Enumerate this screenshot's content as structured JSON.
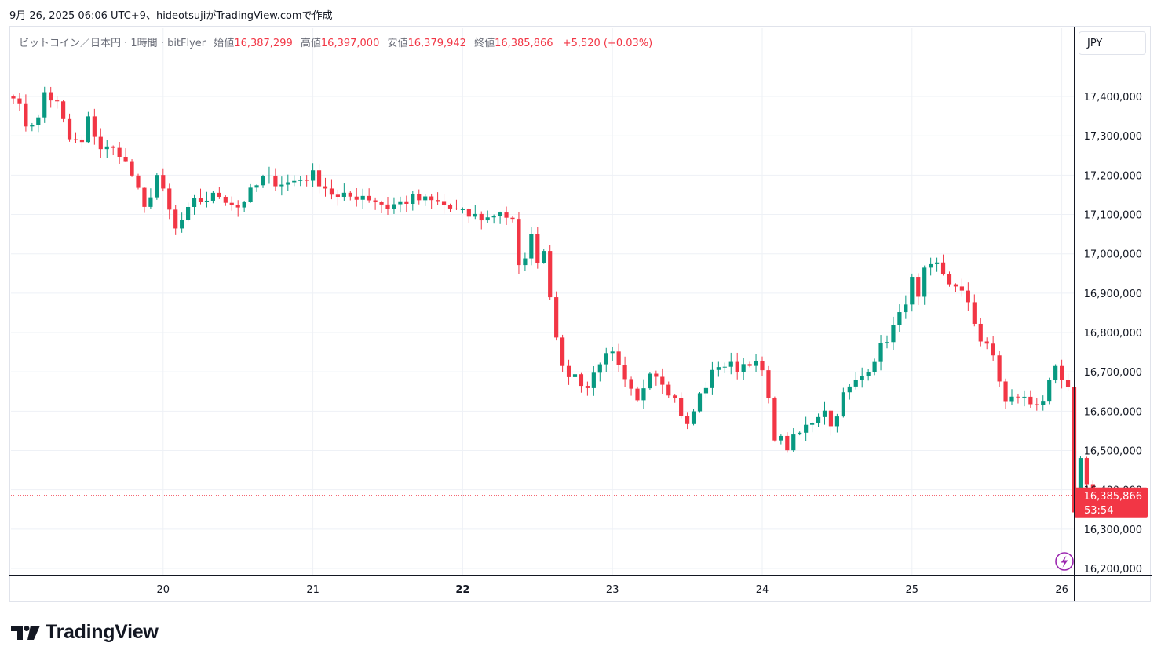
{
  "timestamp": "9月 26, 2025 06:06 UTC+9、hideotsujiがTradingView.comで作成",
  "legend": {
    "symbol": "ビットコイン／日本円 · 1時間 · bitFlyer",
    "open_label": "始値",
    "open_value": "16,387,299",
    "high_label": "高値",
    "high_value": "16,397,000",
    "low_label": "安値",
    "low_value": "16,379,942",
    "close_label": "終値",
    "close_value": "16,385,866",
    "change": "+5,520 (+0.03%)"
  },
  "currency": "JPY",
  "price_tag": {
    "price": "16,385,866",
    "countdown": "53:54"
  },
  "brand": "TradingView",
  "colors": {
    "up": "#089981",
    "down": "#f23645",
    "grid": "#eef1f6",
    "axis": "#131722",
    "alert": "#9c27b0"
  },
  "chart_data": {
    "type": "candlestick",
    "title": "ビットコイン／日本円 · 1時間 · bitFlyer",
    "currency": "JPY",
    "interval": "1時間",
    "ylim": [
      16200000,
      17430000
    ],
    "yticks": [
      16200000,
      16300000,
      16400000,
      16500000,
      16600000,
      16700000,
      16800000,
      16900000,
      17000000,
      17100000,
      17200000,
      17300000,
      17400000
    ],
    "ytick_labels": [
      "16,200,000",
      "16,300,000",
      "16,400,000",
      "16,500,000",
      "16,600,000",
      "16,700,000",
      "16,800,000",
      "16,900,000",
      "17,000,000",
      "17,100,000",
      "17,200,000",
      "17,300,000",
      "17,400,000"
    ],
    "xticks": [
      {
        "label": "20",
        "index": 24,
        "bold": false
      },
      {
        "label": "21",
        "index": 48,
        "bold": false
      },
      {
        "label": "22",
        "index": 72,
        "bold": true
      },
      {
        "label": "23",
        "index": 96,
        "bold": false
      },
      {
        "label": "24",
        "index": 120,
        "bold": false
      },
      {
        "label": "25",
        "index": 144,
        "bold": false
      },
      {
        "label": "26",
        "index": 168,
        "bold": false
      }
    ],
    "last_price": 16385866,
    "grid": true,
    "waypoints": [
      [
        0,
        17410000
      ],
      [
        2,
        17330000
      ],
      [
        4,
        17340000
      ],
      [
        5,
        17410000
      ],
      [
        7,
        17380000
      ],
      [
        9,
        17290000
      ],
      [
        11,
        17280000
      ],
      [
        12,
        17340000
      ],
      [
        14,
        17270000
      ],
      [
        17,
        17260000
      ],
      [
        19,
        17200000
      ],
      [
        21,
        17110000
      ],
      [
        23,
        17200000
      ],
      [
        26,
        17060000
      ],
      [
        29,
        17130000
      ],
      [
        33,
        17150000
      ],
      [
        36,
        17120000
      ],
      [
        40,
        17190000
      ],
      [
        44,
        17180000
      ],
      [
        48,
        17200000
      ],
      [
        52,
        17140000
      ],
      [
        56,
        17150000
      ],
      [
        60,
        17120000
      ],
      [
        64,
        17140000
      ],
      [
        68,
        17130000
      ],
      [
        72,
        17100000
      ],
      [
        76,
        17090000
      ],
      [
        78,
        17110000
      ],
      [
        80,
        17080000
      ],
      [
        81,
        16960000
      ],
      [
        83,
        17040000
      ],
      [
        84,
        16990000
      ],
      [
        85,
        17010000
      ],
      [
        86,
        16900000
      ],
      [
        88,
        16700000
      ],
      [
        90,
        16690000
      ],
      [
        92,
        16660000
      ],
      [
        94,
        16730000
      ],
      [
        96,
        16740000
      ],
      [
        98,
        16670000
      ],
      [
        100,
        16620000
      ],
      [
        102,
        16710000
      ],
      [
        104,
        16680000
      ],
      [
        106,
        16630000
      ],
      [
        108,
        16560000
      ],
      [
        110,
        16640000
      ],
      [
        113,
        16720000
      ],
      [
        116,
        16710000
      ],
      [
        118,
        16730000
      ],
      [
        120,
        16700000
      ],
      [
        122,
        16540000
      ],
      [
        124,
        16510000
      ],
      [
        127,
        16560000
      ],
      [
        130,
        16610000
      ],
      [
        131,
        16560000
      ],
      [
        133,
        16640000
      ],
      [
        136,
        16690000
      ],
      [
        139,
        16760000
      ],
      [
        142,
        16840000
      ],
      [
        144,
        16930000
      ],
      [
        145,
        16880000
      ],
      [
        146,
        16950000
      ],
      [
        148,
        16970000
      ],
      [
        151,
        16910000
      ],
      [
        153,
        16880000
      ],
      [
        155,
        16780000
      ],
      [
        157,
        16740000
      ],
      [
        159,
        16620000
      ],
      [
        161,
        16640000
      ],
      [
        163,
        16620000
      ],
      [
        165,
        16630000
      ],
      [
        167,
        16700000
      ],
      [
        169,
        16650000
      ],
      [
        170,
        16330000
      ],
      [
        171,
        16490000
      ],
      [
        172,
        16410000
      ],
      [
        173,
        16386000
      ]
    ]
  }
}
